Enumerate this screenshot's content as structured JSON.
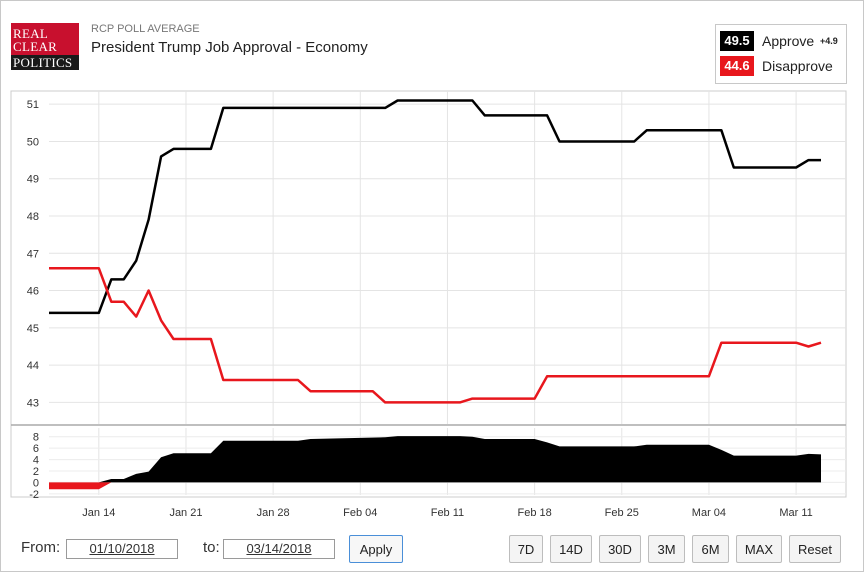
{
  "brand": {
    "logo_lines": [
      "REAL",
      "CLEAR",
      "POLITICS"
    ]
  },
  "header": {
    "kicker": "RCP POLL AVERAGE",
    "title": "President Trump Job Approval - Economy"
  },
  "legend": {
    "approve": {
      "value": "49.5",
      "label": "Approve",
      "spread": "+4.9",
      "color": "#000000"
    },
    "disapprove": {
      "value": "44.6",
      "label": "Disapprove",
      "color": "#e8171d"
    }
  },
  "controls": {
    "from_label": "From:",
    "from_value": "01/10/2018",
    "to_label": "to:",
    "to_value": "03/14/2018",
    "apply_label": "Apply",
    "ranges": [
      "7D",
      "14D",
      "30D",
      "3M",
      "6M",
      "MAX",
      "Reset"
    ]
  },
  "chart_data": [
    {
      "type": "line",
      "title": "",
      "x_axis": {
        "type": "date",
        "range": [
          "2018-01-10",
          "2018-03-14"
        ],
        "tick_labels": [
          "Jan 14",
          "Jan 21",
          "Jan 28",
          "Feb 04",
          "Feb 11",
          "Feb 18",
          "Feb 25",
          "Mar 04",
          "Mar 11"
        ],
        "tick_dates": [
          "2018-01-14",
          "2018-01-21",
          "2018-01-28",
          "2018-02-04",
          "2018-02-11",
          "2018-02-18",
          "2018-02-25",
          "2018-03-04",
          "2018-03-11"
        ]
      },
      "y_axis": {
        "range": [
          42.5,
          51.3
        ],
        "ticks": [
          43,
          44,
          45,
          46,
          47,
          48,
          49,
          50,
          51
        ]
      },
      "grid": true,
      "series": [
        {
          "name": "Approve",
          "color": "#000000",
          "points": [
            [
              "2018-01-10",
              45.4
            ],
            [
              "2018-01-14",
              45.4
            ],
            [
              "2018-01-15",
              46.3
            ],
            [
              "2018-01-16",
              46.3
            ],
            [
              "2018-01-17",
              46.8
            ],
            [
              "2018-01-18",
              47.9
            ],
            [
              "2018-01-19",
              49.6
            ],
            [
              "2018-01-20",
              49.8
            ],
            [
              "2018-01-23",
              49.8
            ],
            [
              "2018-01-24",
              50.9
            ],
            [
              "2018-02-06",
              50.9
            ],
            [
              "2018-02-07",
              51.1
            ],
            [
              "2018-02-13",
              51.1
            ],
            [
              "2018-02-14",
              50.7
            ],
            [
              "2018-02-19",
              50.7
            ],
            [
              "2018-02-20",
              50.0
            ],
            [
              "2018-02-26",
              50.0
            ],
            [
              "2018-02-27",
              50.3
            ],
            [
              "2018-03-05",
              50.3
            ],
            [
              "2018-03-06",
              49.3
            ],
            [
              "2018-03-11",
              49.3
            ],
            [
              "2018-03-12",
              49.5
            ],
            [
              "2018-03-13",
              49.5
            ]
          ]
        },
        {
          "name": "Disapprove",
          "color": "#e8171d",
          "points": [
            [
              "2018-01-10",
              46.6
            ],
            [
              "2018-01-14",
              46.6
            ],
            [
              "2018-01-15",
              45.7
            ],
            [
              "2018-01-16",
              45.7
            ],
            [
              "2018-01-17",
              45.3
            ],
            [
              "2018-01-18",
              46.0
            ],
            [
              "2018-01-19",
              45.2
            ],
            [
              "2018-01-20",
              44.7
            ],
            [
              "2018-01-23",
              44.7
            ],
            [
              "2018-01-24",
              43.6
            ],
            [
              "2018-01-30",
              43.6
            ],
            [
              "2018-01-31",
              43.3
            ],
            [
              "2018-02-05",
              43.3
            ],
            [
              "2018-02-06",
              43.0
            ],
            [
              "2018-02-12",
              43.0
            ],
            [
              "2018-02-13",
              43.1
            ],
            [
              "2018-02-18",
              43.1
            ],
            [
              "2018-02-19",
              43.7
            ],
            [
              "2018-03-04",
              43.7
            ],
            [
              "2018-03-05",
              44.6
            ],
            [
              "2018-03-11",
              44.6
            ],
            [
              "2018-03-12",
              44.5
            ],
            [
              "2018-03-13",
              44.6
            ]
          ]
        }
      ]
    },
    {
      "type": "area",
      "title": "",
      "y_axis": {
        "range": [
          -2.2,
          9
        ],
        "ticks": [
          -2,
          0,
          2,
          4,
          6,
          8
        ]
      },
      "series": [
        {
          "name": "Spread",
          "positive_color": "#000000",
          "negative_color": "#e8171d",
          "points": [
            [
              "2018-01-10",
              -1.2
            ],
            [
              "2018-01-14",
              -1.2
            ],
            [
              "2018-01-15",
              0.6
            ],
            [
              "2018-01-16",
              0.6
            ],
            [
              "2018-01-17",
              1.5
            ],
            [
              "2018-01-18",
              1.9
            ],
            [
              "2018-01-19",
              4.4
            ],
            [
              "2018-01-20",
              5.1
            ],
            [
              "2018-01-23",
              5.1
            ],
            [
              "2018-01-24",
              7.3
            ],
            [
              "2018-01-30",
              7.3
            ],
            [
              "2018-01-31",
              7.6
            ],
            [
              "2018-02-06",
              7.9
            ],
            [
              "2018-02-07",
              8.1
            ],
            [
              "2018-02-12",
              8.1
            ],
            [
              "2018-02-13",
              8.0
            ],
            [
              "2018-02-14",
              7.6
            ],
            [
              "2018-02-18",
              7.6
            ],
            [
              "2018-02-19",
              7.0
            ],
            [
              "2018-02-20",
              6.3
            ],
            [
              "2018-02-26",
              6.3
            ],
            [
              "2018-02-27",
              6.6
            ],
            [
              "2018-03-04",
              6.6
            ],
            [
              "2018-03-05",
              5.7
            ],
            [
              "2018-03-06",
              4.7
            ],
            [
              "2018-03-11",
              4.7
            ],
            [
              "2018-03-12",
              5.0
            ],
            [
              "2018-03-13",
              4.9
            ]
          ]
        }
      ]
    }
  ]
}
